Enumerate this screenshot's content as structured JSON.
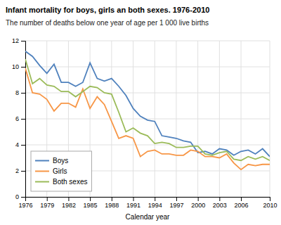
{
  "chart_data": {
    "type": "line",
    "title": "Infant mortality for boys, girls an both sexes. 1976-2010",
    "subtitle": "The number of deaths below one year of age per 1 000 live births",
    "xlabel": "Calendar year",
    "x": [
      1976,
      1977,
      1978,
      1979,
      1980,
      1981,
      1982,
      1983,
      1984,
      1985,
      1986,
      1987,
      1988,
      1989,
      1990,
      1991,
      1992,
      1993,
      1994,
      1995,
      1996,
      1997,
      1998,
      1999,
      2000,
      2001,
      2002,
      2003,
      2004,
      2005,
      2006,
      2007,
      2008,
      2009,
      2010
    ],
    "series": [
      {
        "name": "Boys",
        "color": "#4f81bd",
        "values": [
          11.2,
          10.8,
          10.1,
          9.5,
          10.2,
          8.8,
          8.8,
          8.5,
          8.8,
          10.3,
          9.1,
          8.9,
          9.1,
          8.5,
          7.8,
          6.8,
          6.2,
          5.9,
          5.8,
          4.7,
          4.6,
          4.5,
          4.3,
          4.2,
          3.4,
          3.5,
          3.3,
          3.7,
          3.6,
          3.2,
          3.5,
          3.6,
          3.3,
          3.7,
          3.1
        ]
      },
      {
        "name": "Girls",
        "color": "#f79646",
        "values": [
          9.9,
          8.0,
          7.9,
          7.5,
          6.6,
          7.2,
          7.2,
          6.9,
          8.3,
          6.8,
          7.7,
          7.1,
          5.8,
          4.5,
          4.7,
          4.5,
          3.1,
          3.5,
          3.6,
          3.3,
          3.3,
          3.2,
          3.2,
          3.6,
          3.5,
          3.1,
          3.1,
          3.0,
          3.3,
          2.6,
          2.1,
          2.5,
          2.4,
          2.5,
          2.5
        ]
      },
      {
        "name": "Both sexes",
        "color": "#9bbb59",
        "values": [
          10.6,
          8.7,
          9.1,
          8.6,
          8.5,
          8.1,
          8.1,
          7.7,
          8.1,
          8.5,
          8.4,
          8.0,
          7.9,
          6.5,
          5.0,
          5.3,
          4.9,
          4.7,
          4.1,
          4.2,
          4.1,
          3.8,
          3.8,
          3.9,
          3.9,
          3.3,
          3.2,
          3.4,
          3.5,
          2.9,
          2.8,
          3.1,
          2.9,
          3.1,
          2.8
        ]
      }
    ],
    "xlim": [
      1976,
      2010
    ],
    "xticks": [
      1976,
      1979,
      1982,
      1985,
      1988,
      1991,
      1994,
      1997,
      2000,
      2003,
      2006,
      2010
    ],
    "ylim": [
      0,
      12
    ],
    "yticks": [
      0,
      2,
      4,
      6,
      8,
      10,
      12
    ],
    "grid": true,
    "legend": "lower left"
  }
}
